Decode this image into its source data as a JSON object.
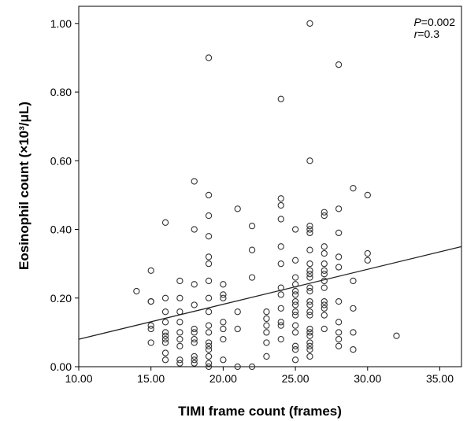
{
  "chart_data": {
    "type": "scatter",
    "xlabel": "TIMI frame count (frames)",
    "ylabel": "Eosinophil count (×10³/μL)",
    "xlim": [
      10,
      36.5
    ],
    "ylim": [
      0,
      1.05
    ],
    "x_ticks": [
      "10.00",
      "15.00",
      "20.00",
      "25.00",
      "30.00",
      "35.00"
    ],
    "y_ticks": [
      "0.00",
      "0.20",
      "0.40",
      "0.60",
      "0.80",
      "1.00"
    ],
    "annotations": {
      "p_label": "P",
      "p_value": "=0.002",
      "r_label": "r",
      "r_value": "=0.3"
    },
    "fit_line": {
      "x": [
        10,
        36.5
      ],
      "y": [
        0.08,
        0.35
      ]
    },
    "points": [
      [
        14,
        0.22
      ],
      [
        15,
        0.28
      ],
      [
        15,
        0.19
      ],
      [
        15,
        0.19
      ],
      [
        15,
        0.12
      ],
      [
        15,
        0.11
      ],
      [
        15,
        0.07
      ],
      [
        16,
        0.42
      ],
      [
        16,
        0.2
      ],
      [
        16,
        0.16
      ],
      [
        16,
        0.13
      ],
      [
        16,
        0.1
      ],
      [
        16,
        0.09
      ],
      [
        16,
        0.08
      ],
      [
        16,
        0.07
      ],
      [
        16,
        0.04
      ],
      [
        16,
        0.02
      ],
      [
        17,
        0.25
      ],
      [
        17,
        0.2
      ],
      [
        17,
        0.16
      ],
      [
        17,
        0.13
      ],
      [
        17,
        0.1
      ],
      [
        17,
        0.08
      ],
      [
        17,
        0.06
      ],
      [
        17,
        0.02
      ],
      [
        17,
        0.01
      ],
      [
        18,
        0.54
      ],
      [
        18,
        0.4
      ],
      [
        18,
        0.24
      ],
      [
        18,
        0.18
      ],
      [
        18,
        0.11
      ],
      [
        18,
        0.1
      ],
      [
        18,
        0.08
      ],
      [
        18,
        0.07
      ],
      [
        18,
        0.03
      ],
      [
        18,
        0.02
      ],
      [
        18,
        0.01
      ],
      [
        19,
        0.9
      ],
      [
        19,
        0.5
      ],
      [
        19,
        0.44
      ],
      [
        19,
        0.38
      ],
      [
        19,
        0.32
      ],
      [
        19,
        0.3
      ],
      [
        19,
        0.25
      ],
      [
        19,
        0.2
      ],
      [
        19,
        0.16
      ],
      [
        19,
        0.12
      ],
      [
        19,
        0.1
      ],
      [
        19,
        0.07
      ],
      [
        19,
        0.06
      ],
      [
        19,
        0.05
      ],
      [
        19,
        0.03
      ],
      [
        19,
        0.01
      ],
      [
        19,
        0.0
      ],
      [
        20,
        0.24
      ],
      [
        20,
        0.21
      ],
      [
        20,
        0.2
      ],
      [
        20,
        0.13
      ],
      [
        20,
        0.11
      ],
      [
        20,
        0.08
      ],
      [
        20,
        0.02
      ],
      [
        21,
        0.46
      ],
      [
        21,
        0.16
      ],
      [
        21,
        0.11
      ],
      [
        21,
        0.0
      ],
      [
        22,
        0.41
      ],
      [
        22,
        0.34
      ],
      [
        22,
        0.26
      ],
      [
        22,
        0.0
      ],
      [
        23,
        0.16
      ],
      [
        23,
        0.14
      ],
      [
        23,
        0.12
      ],
      [
        23,
        0.1
      ],
      [
        23,
        0.07
      ],
      [
        23,
        0.03
      ],
      [
        24,
        0.78
      ],
      [
        24,
        0.49
      ],
      [
        24,
        0.47
      ],
      [
        24,
        0.43
      ],
      [
        24,
        0.35
      ],
      [
        24,
        0.3
      ],
      [
        24,
        0.23
      ],
      [
        24,
        0.21
      ],
      [
        24,
        0.17
      ],
      [
        24,
        0.13
      ],
      [
        24,
        0.12
      ],
      [
        24,
        0.08
      ],
      [
        25,
        0.4
      ],
      [
        25,
        0.31
      ],
      [
        25,
        0.26
      ],
      [
        25,
        0.24
      ],
      [
        25,
        0.22
      ],
      [
        25,
        0.21
      ],
      [
        25,
        0.19
      ],
      [
        25,
        0.18
      ],
      [
        25,
        0.16
      ],
      [
        25,
        0.15
      ],
      [
        25,
        0.12
      ],
      [
        25,
        0.1
      ],
      [
        25,
        0.06
      ],
      [
        25,
        0.05
      ],
      [
        25,
        0.02
      ],
      [
        26,
        1.0
      ],
      [
        26,
        0.6
      ],
      [
        26,
        0.41
      ],
      [
        26,
        0.4
      ],
      [
        26,
        0.39
      ],
      [
        26,
        0.34
      ],
      [
        26,
        0.3
      ],
      [
        26,
        0.28
      ],
      [
        26,
        0.27
      ],
      [
        26,
        0.26
      ],
      [
        26,
        0.23
      ],
      [
        26,
        0.22
      ],
      [
        26,
        0.19
      ],
      [
        26,
        0.18
      ],
      [
        26,
        0.16
      ],
      [
        26,
        0.15
      ],
      [
        26,
        0.11
      ],
      [
        26,
        0.1
      ],
      [
        26,
        0.09
      ],
      [
        26,
        0.07
      ],
      [
        26,
        0.06
      ],
      [
        26,
        0.05
      ],
      [
        26,
        0.03
      ],
      [
        27,
        0.45
      ],
      [
        27,
        0.44
      ],
      [
        27,
        0.35
      ],
      [
        27,
        0.33
      ],
      [
        27,
        0.3
      ],
      [
        27,
        0.28
      ],
      [
        27,
        0.27
      ],
      [
        27,
        0.25
      ],
      [
        27,
        0.23
      ],
      [
        27,
        0.19
      ],
      [
        27,
        0.18
      ],
      [
        27,
        0.17
      ],
      [
        27,
        0.15
      ],
      [
        27,
        0.11
      ],
      [
        28,
        0.88
      ],
      [
        28,
        0.46
      ],
      [
        28,
        0.39
      ],
      [
        28,
        0.32
      ],
      [
        28,
        0.29
      ],
      [
        28,
        0.19
      ],
      [
        28,
        0.13
      ],
      [
        28,
        0.1
      ],
      [
        28,
        0.08
      ],
      [
        28,
        0.06
      ],
      [
        29,
        0.52
      ],
      [
        29,
        0.25
      ],
      [
        29,
        0.17
      ],
      [
        29,
        0.1
      ],
      [
        29,
        0.05
      ],
      [
        30,
        0.5
      ],
      [
        30,
        0.33
      ],
      [
        30,
        0.31
      ],
      [
        32,
        0.09
      ]
    ]
  }
}
